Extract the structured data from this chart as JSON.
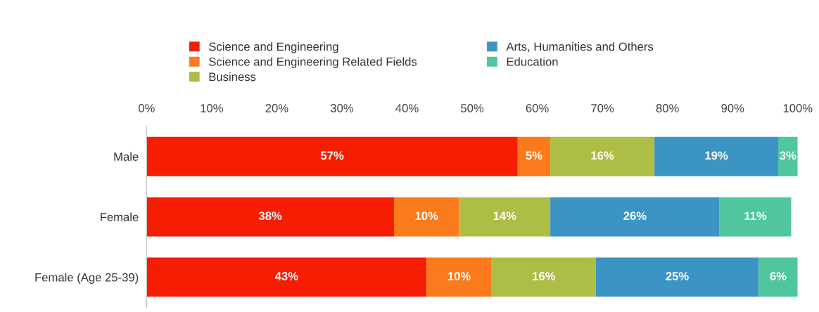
{
  "chart_data": {
    "type": "bar",
    "orientation": "horizontal",
    "stacked": true,
    "categories": [
      "Male",
      "Female",
      "Female (Age 25-39)"
    ],
    "series": [
      {
        "name": "Science and Engineering",
        "color": "#f61d02",
        "values": [
          57,
          38,
          43
        ],
        "value_labels": [
          "57%",
          "38%",
          "43%"
        ]
      },
      {
        "name": "Science and Engineering Related Fields",
        "color": "#fb7a1c",
        "values": [
          5,
          10,
          10
        ],
        "value_labels": [
          "5%",
          "10%",
          "10%"
        ]
      },
      {
        "name": "Business",
        "color": "#aebd45",
        "values": [
          16,
          14,
          16
        ],
        "value_labels": [
          "16%",
          "14%",
          "16%"
        ]
      },
      {
        "name": "Arts, Humanities and Others",
        "color": "#3b94c4",
        "values": [
          19,
          26,
          25
        ],
        "value_labels": [
          "19%",
          "26%",
          "25%"
        ]
      },
      {
        "name": "Education",
        "color": "#4fc6a0",
        "values": [
          3,
          11,
          6
        ],
        "value_labels": [
          "3%",
          "11%",
          "6%"
        ]
      }
    ],
    "xlim": [
      0,
      100
    ],
    "xticks": [
      {
        "value": 0,
        "label": "0%"
      },
      {
        "value": 10,
        "label": "10%"
      },
      {
        "value": 20,
        "label": "20%"
      },
      {
        "value": 30,
        "label": "30%"
      },
      {
        "value": 40,
        "label": "40%"
      },
      {
        "value": 50,
        "label": "50%"
      },
      {
        "value": 60,
        "label": "60%"
      },
      {
        "value": 70,
        "label": "70%"
      },
      {
        "value": 80,
        "label": "80%"
      },
      {
        "value": 90,
        "label": "90%"
      },
      {
        "value": 100,
        "label": "100%"
      }
    ],
    "legend": "top",
    "grid": false
  }
}
